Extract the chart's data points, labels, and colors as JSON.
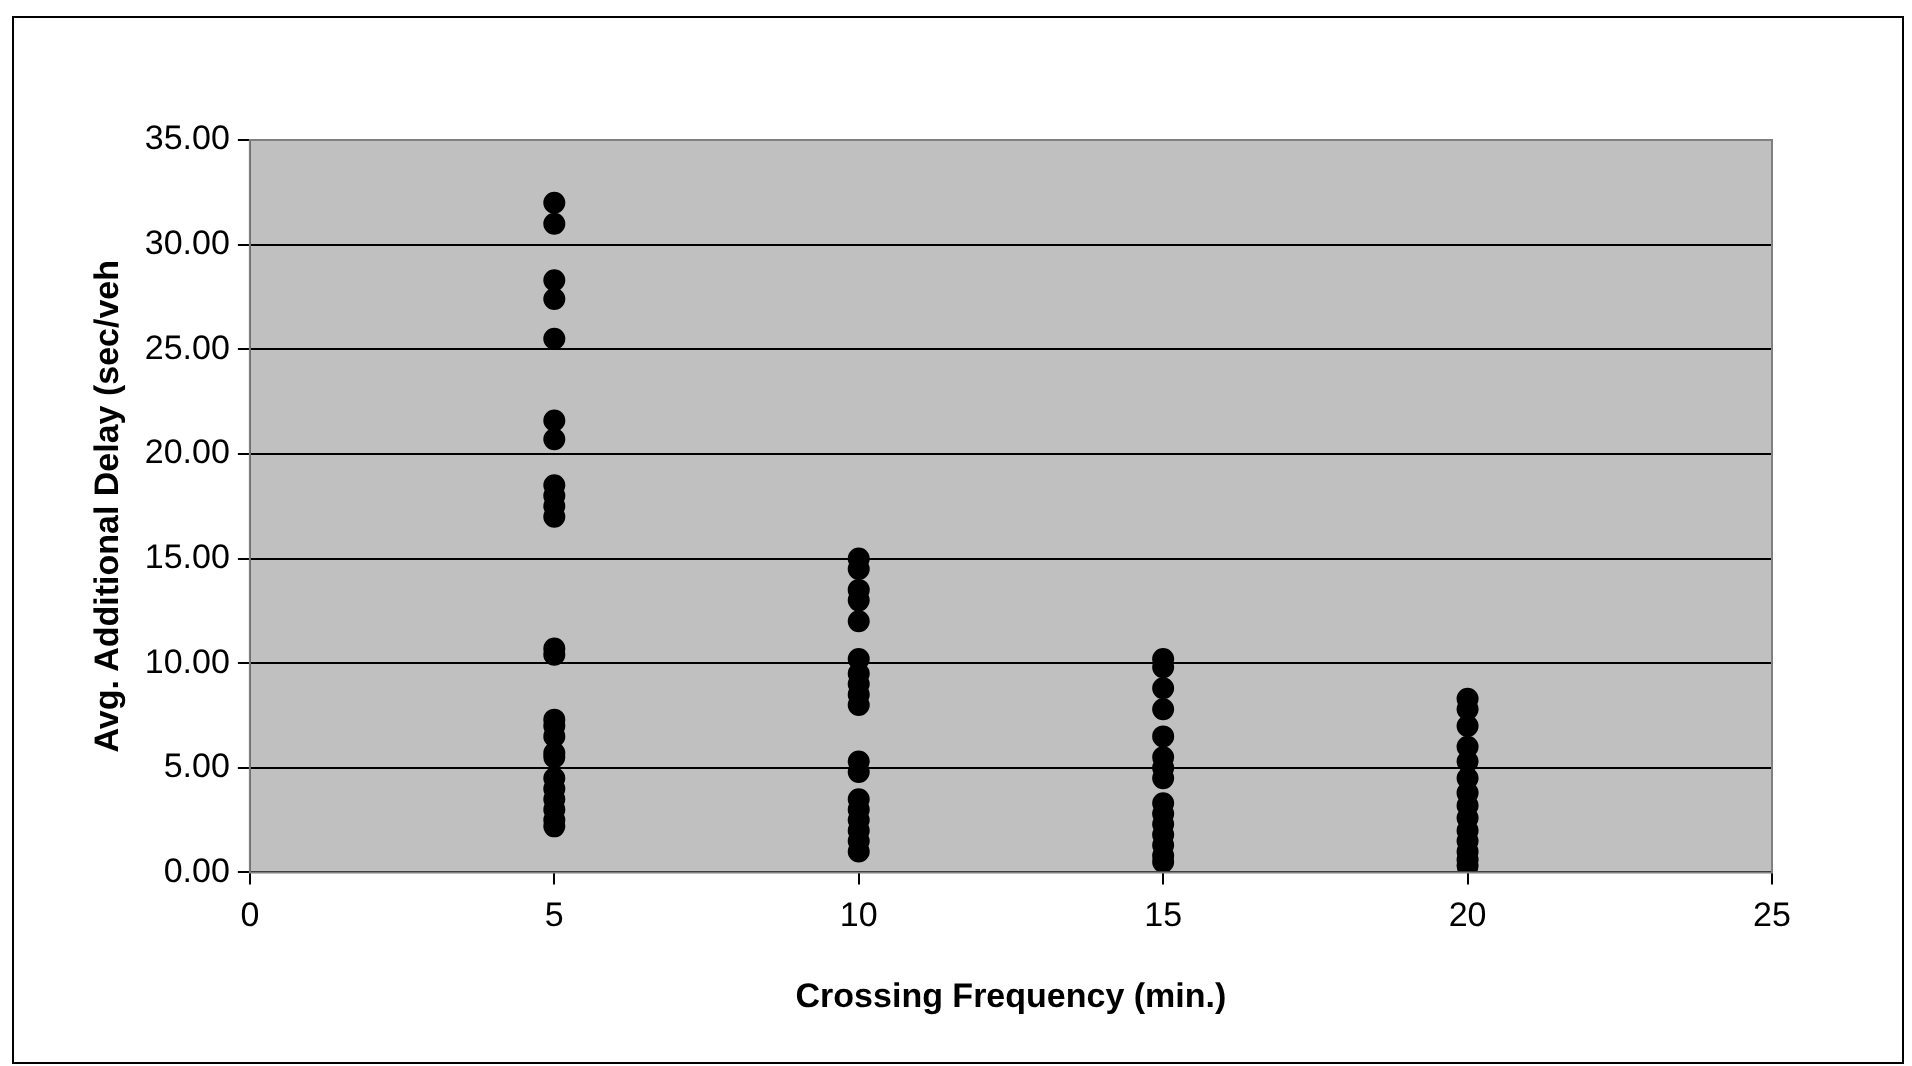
{
  "chart_data": {
    "type": "scatter",
    "xlabel": "Crossing Frequency (min.)",
    "ylabel": "Avg. Additional Delay (sec/veh",
    "marker": "circle",
    "grid": "y",
    "legend": false,
    "xlim": [
      0,
      25
    ],
    "xticks": [
      0,
      5,
      10,
      15,
      20,
      25
    ],
    "ylim": [
      0,
      35
    ],
    "yticks": [
      {
        "value": 0,
        "label": "0.00"
      },
      {
        "value": 5,
        "label": "5.00"
      },
      {
        "value": 10,
        "label": "10.00"
      },
      {
        "value": 15,
        "label": "15.00"
      },
      {
        "value": 20,
        "label": "20.00"
      },
      {
        "value": 25,
        "label": "25.00"
      },
      {
        "value": 30,
        "label": "30.00"
      },
      {
        "value": 35,
        "label": "35.00"
      }
    ],
    "series": [
      {
        "color": "#000000",
        "x": [
          5,
          5,
          5,
          5,
          5,
          5,
          5,
          5,
          5,
          5,
          5,
          5,
          5,
          5,
          5,
          5,
          5,
          5,
          5,
          5,
          5,
          5,
          5,
          5,
          10,
          10,
          10,
          10,
          10,
          10,
          10,
          10,
          10,
          10,
          10,
          10,
          10,
          10,
          10,
          10,
          10,
          10,
          15,
          15,
          15,
          15,
          15,
          15,
          15,
          15,
          15,
          15,
          15,
          15,
          15,
          15,
          15,
          20,
          20,
          20,
          20,
          20,
          20,
          20,
          20,
          20,
          20,
          20,
          20,
          20,
          20
        ],
        "values": [
          32.0,
          31.0,
          28.3,
          27.4,
          25.5,
          21.6,
          20.7,
          18.5,
          18.0,
          17.5,
          17.0,
          10.7,
          10.4,
          7.3,
          7.0,
          6.5,
          5.7,
          5.5,
          4.5,
          4.0,
          3.5,
          3.0,
          2.5,
          2.2,
          15.0,
          14.5,
          13.5,
          13.0,
          12.0,
          10.2,
          9.5,
          9.0,
          8.5,
          8.0,
          5.3,
          4.8,
          3.5,
          3.0,
          2.5,
          2.0,
          1.5,
          1.0,
          10.2,
          9.8,
          8.8,
          7.8,
          6.5,
          5.5,
          5.0,
          4.5,
          3.3,
          2.8,
          2.3,
          1.8,
          1.3,
          0.8,
          0.5,
          8.3,
          7.8,
          7.0,
          6.0,
          5.3,
          4.5,
          3.8,
          3.2,
          2.6,
          2.0,
          1.5,
          1.0,
          0.6,
          0.3
        ]
      }
    ]
  }
}
